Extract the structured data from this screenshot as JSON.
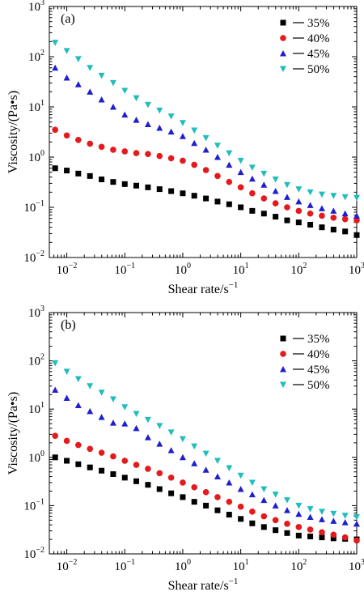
{
  "figure": {
    "panel_labels": [
      "(a)",
      "(b)"
    ],
    "xlabel_text": "Shear rate/s",
    "xlabel_exp": "−1",
    "ylabel_text": "Viscosity/(Pa•s)"
  },
  "chart_data": [
    {
      "type": "scatter",
      "panel_label": "(a)",
      "xlabel": "Shear rate/s−1",
      "ylabel": "Viscosity/(Pa•s)",
      "xscale": "log",
      "yscale": "log",
      "xlim": [
        0.005,
        1000
      ],
      "ylim": [
        0.01,
        1000
      ],
      "x_ticks": [
        0.01,
        0.1,
        1,
        10,
        100,
        1000
      ],
      "x_tick_labels": [
        {
          "base": "10",
          "exp": "−2"
        },
        {
          "base": "10",
          "exp": "−1"
        },
        {
          "base": "10",
          "exp": "0"
        },
        {
          "base": "10",
          "exp": "1"
        },
        {
          "base": "10",
          "exp": "2"
        },
        {
          "base": "10",
          "exp": "3"
        }
      ],
      "y_ticks": [
        0.01,
        0.1,
        1,
        10,
        100,
        1000
      ],
      "y_tick_labels": [
        {
          "base": "10",
          "exp": "−2"
        },
        {
          "base": "10",
          "exp": "−1"
        },
        {
          "base": "10",
          "exp": "0"
        },
        {
          "base": "10",
          "exp": "1"
        },
        {
          "base": "10",
          "exp": "2"
        },
        {
          "base": "10",
          "exp": "3"
        }
      ],
      "legend_position": "top-right",
      "grid": false,
      "series": [
        {
          "name": "35%",
          "marker": "square",
          "color": "#000000",
          "x": [
            0.0063,
            0.01,
            0.0158,
            0.0251,
            0.0398,
            0.0631,
            0.1,
            0.158,
            0.251,
            0.398,
            0.631,
            1,
            1.58,
            2.51,
            3.98,
            6.31,
            10,
            15.8,
            25.1,
            39.8,
            63.1,
            100,
            158,
            251,
            398,
            631,
            1000
          ],
          "y": [
            0.6,
            0.54,
            0.47,
            0.42,
            0.36,
            0.32,
            0.29,
            0.27,
            0.25,
            0.23,
            0.21,
            0.19,
            0.17,
            0.15,
            0.13,
            0.115,
            0.1,
            0.085,
            0.075,
            0.065,
            0.055,
            0.05,
            0.045,
            0.04,
            0.036,
            0.033,
            0.028
          ]
        },
        {
          "name": "40%",
          "marker": "circle",
          "color": "#e41a1c",
          "x": [
            0.0063,
            0.01,
            0.0158,
            0.0251,
            0.0398,
            0.0631,
            0.1,
            0.158,
            0.251,
            0.398,
            0.631,
            1,
            1.58,
            2.51,
            3.98,
            6.31,
            10,
            15.8,
            25.1,
            39.8,
            63.1,
            100,
            158,
            251,
            398,
            631,
            1000
          ],
          "y": [
            3.5,
            2.7,
            2.2,
            1.85,
            1.6,
            1.4,
            1.3,
            1.2,
            1.15,
            1.05,
            0.95,
            0.85,
            0.7,
            0.55,
            0.42,
            0.32,
            0.25,
            0.19,
            0.15,
            0.12,
            0.1,
            0.085,
            0.075,
            0.068,
            0.062,
            0.058,
            0.055
          ]
        },
        {
          "name": "45%",
          "marker": "triangle-up",
          "color": "#1f1fd0",
          "x": [
            0.0063,
            0.01,
            0.0158,
            0.0251,
            0.0398,
            0.0631,
            0.1,
            0.158,
            0.251,
            0.398,
            0.631,
            1,
            1.58,
            2.51,
            3.98,
            6.31,
            10,
            15.8,
            25.1,
            39.8,
            63.1,
            100,
            158,
            251,
            398,
            631,
            1000
          ],
          "y": [
            60,
            38,
            28,
            20,
            14,
            10,
            7,
            5.5,
            4.5,
            3.8,
            3.2,
            2.6,
            1.9,
            1.4,
            1.0,
            0.7,
            0.5,
            0.37,
            0.28,
            0.21,
            0.16,
            0.13,
            0.11,
            0.095,
            0.085,
            0.075,
            0.068
          ]
        },
        {
          "name": "50%",
          "marker": "triangle-down",
          "color": "#1fbdbd",
          "x": [
            0.0063,
            0.01,
            0.0158,
            0.0251,
            0.0398,
            0.0631,
            0.1,
            0.158,
            0.251,
            0.398,
            0.631,
            1,
            1.58,
            2.51,
            3.98,
            6.31,
            10,
            15.8,
            25.1,
            39.8,
            63.1,
            100,
            158,
            251,
            398,
            631,
            1000
          ],
          "y": [
            190,
            130,
            90,
            60,
            42,
            30,
            21,
            15,
            11,
            8.5,
            6.5,
            4.8,
            3.4,
            2.4,
            1.7,
            1.2,
            0.85,
            0.62,
            0.47,
            0.36,
            0.28,
            0.23,
            0.2,
            0.18,
            0.17,
            0.16,
            0.155
          ]
        }
      ]
    },
    {
      "type": "scatter",
      "panel_label": "(b)",
      "xlabel": "Shear rate/s−1",
      "ylabel": "Viscosity/(Pa•s)",
      "xscale": "log",
      "yscale": "log",
      "xlim": [
        0.005,
        1000
      ],
      "ylim": [
        0.01,
        1000
      ],
      "x_ticks": [
        0.01,
        0.1,
        1,
        10,
        100,
        1000
      ],
      "x_tick_labels": [
        {
          "base": "10",
          "exp": "−2"
        },
        {
          "base": "10",
          "exp": "−1"
        },
        {
          "base": "10",
          "exp": "0"
        },
        {
          "base": "10",
          "exp": "1"
        },
        {
          "base": "10",
          "exp": "2"
        },
        {
          "base": "10",
          "exp": "3"
        }
      ],
      "y_ticks": [
        0.01,
        0.1,
        1,
        10,
        100,
        1000
      ],
      "y_tick_labels": [
        {
          "base": "10",
          "exp": "−2"
        },
        {
          "base": "10",
          "exp": "−1"
        },
        {
          "base": "10",
          "exp": "0"
        },
        {
          "base": "10",
          "exp": "1"
        },
        {
          "base": "10",
          "exp": "2"
        },
        {
          "base": "10",
          "exp": "3"
        }
      ],
      "legend_position": "top-right",
      "grid": false,
      "series": [
        {
          "name": "35%",
          "marker": "square",
          "color": "#000000",
          "x": [
            0.0063,
            0.01,
            0.0158,
            0.0251,
            0.0398,
            0.0631,
            0.1,
            0.158,
            0.251,
            0.398,
            0.631,
            1,
            1.58,
            2.51,
            3.98,
            6.31,
            10,
            15.8,
            25.1,
            39.8,
            63.1,
            100,
            158,
            251,
            398,
            631,
            1000
          ],
          "y": [
            1.0,
            0.85,
            0.72,
            0.62,
            0.53,
            0.45,
            0.38,
            0.32,
            0.27,
            0.22,
            0.18,
            0.15,
            0.12,
            0.1,
            0.08,
            0.065,
            0.053,
            0.043,
            0.036,
            0.031,
            0.027,
            0.024,
            0.023,
            0.022,
            0.021,
            0.0205,
            0.02
          ]
        },
        {
          "name": "40%",
          "marker": "circle",
          "color": "#e41a1c",
          "x": [
            0.0063,
            0.01,
            0.0158,
            0.0251,
            0.0398,
            0.0631,
            0.1,
            0.158,
            0.251,
            0.398,
            0.631,
            1,
            1.58,
            2.51,
            3.98,
            6.31,
            10,
            15.8,
            25.1,
            39.8,
            63.1,
            100,
            158,
            251,
            398,
            631,
            1000
          ],
          "y": [
            2.8,
            2.2,
            1.8,
            1.5,
            1.25,
            1.05,
            0.85,
            0.7,
            0.58,
            0.47,
            0.38,
            0.3,
            0.24,
            0.19,
            0.15,
            0.12,
            0.095,
            0.075,
            0.06,
            0.05,
            0.042,
            0.036,
            0.032,
            0.028,
            0.025,
            0.022,
            0.019
          ]
        },
        {
          "name": "45%",
          "marker": "triangle-up",
          "color": "#1f1fd0",
          "x": [
            0.0063,
            0.01,
            0.0158,
            0.0251,
            0.0398,
            0.0631,
            0.1,
            0.158,
            0.251,
            0.398,
            0.631,
            1,
            1.58,
            2.51,
            3.98,
            6.31,
            10,
            15.8,
            25.1,
            39.8,
            63.1,
            100,
            158,
            251,
            398,
            631,
            1000
          ],
          "y": [
            25,
            17,
            12,
            9,
            6.8,
            5.2,
            5.0,
            4.0,
            2.6,
            1.9,
            1.4,
            1.0,
            0.75,
            0.55,
            0.4,
            0.3,
            0.22,
            0.17,
            0.13,
            0.1,
            0.08,
            0.067,
            0.058,
            0.052,
            0.048,
            0.045,
            0.042
          ]
        },
        {
          "name": "50%",
          "marker": "triangle-down",
          "color": "#1fbdbd",
          "x": [
            0.0063,
            0.01,
            0.0158,
            0.0251,
            0.0398,
            0.0631,
            0.1,
            0.158,
            0.251,
            0.398,
            0.631,
            1,
            1.58,
            2.51,
            3.98,
            6.31,
            10,
            15.8,
            25.1,
            39.8,
            63.1,
            100,
            158,
            251,
            398,
            631,
            1000
          ],
          "y": [
            90,
            60,
            42,
            30,
            22,
            16,
            11,
            8,
            6,
            4.5,
            3.3,
            2.4,
            1.7,
            1.2,
            0.85,
            0.6,
            0.42,
            0.3,
            0.22,
            0.17,
            0.13,
            0.1,
            0.085,
            0.075,
            0.068,
            0.062,
            0.058
          ]
        }
      ]
    }
  ]
}
